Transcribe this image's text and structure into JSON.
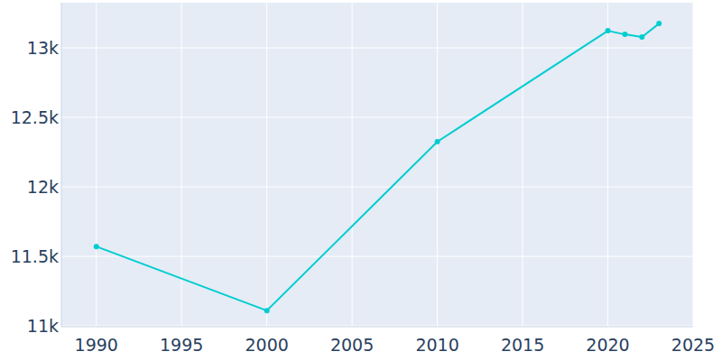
{
  "chart_data": {
    "type": "line",
    "x": [
      1990,
      2000,
      2010,
      2020,
      2021,
      2022,
      2023
    ],
    "values": [
      11571,
      11110,
      12325,
      13123,
      13097,
      13078,
      13175
    ],
    "color": "#00cdd0",
    "marker": "circle",
    "xlim": [
      1987.95,
      2025
    ],
    "xticks": [
      1990,
      1995,
      2000,
      2005,
      2010,
      2015,
      2020,
      2025
    ],
    "ylim": [
      10994,
      13325
    ],
    "yticks": [
      {
        "value": 11000,
        "label": "11k"
      },
      {
        "value": 11500,
        "label": "11.5k"
      },
      {
        "value": 12000,
        "label": "12k"
      },
      {
        "value": 12500,
        "label": "12.5k"
      },
      {
        "value": 13000,
        "label": "13k"
      }
    ],
    "grid": true
  }
}
